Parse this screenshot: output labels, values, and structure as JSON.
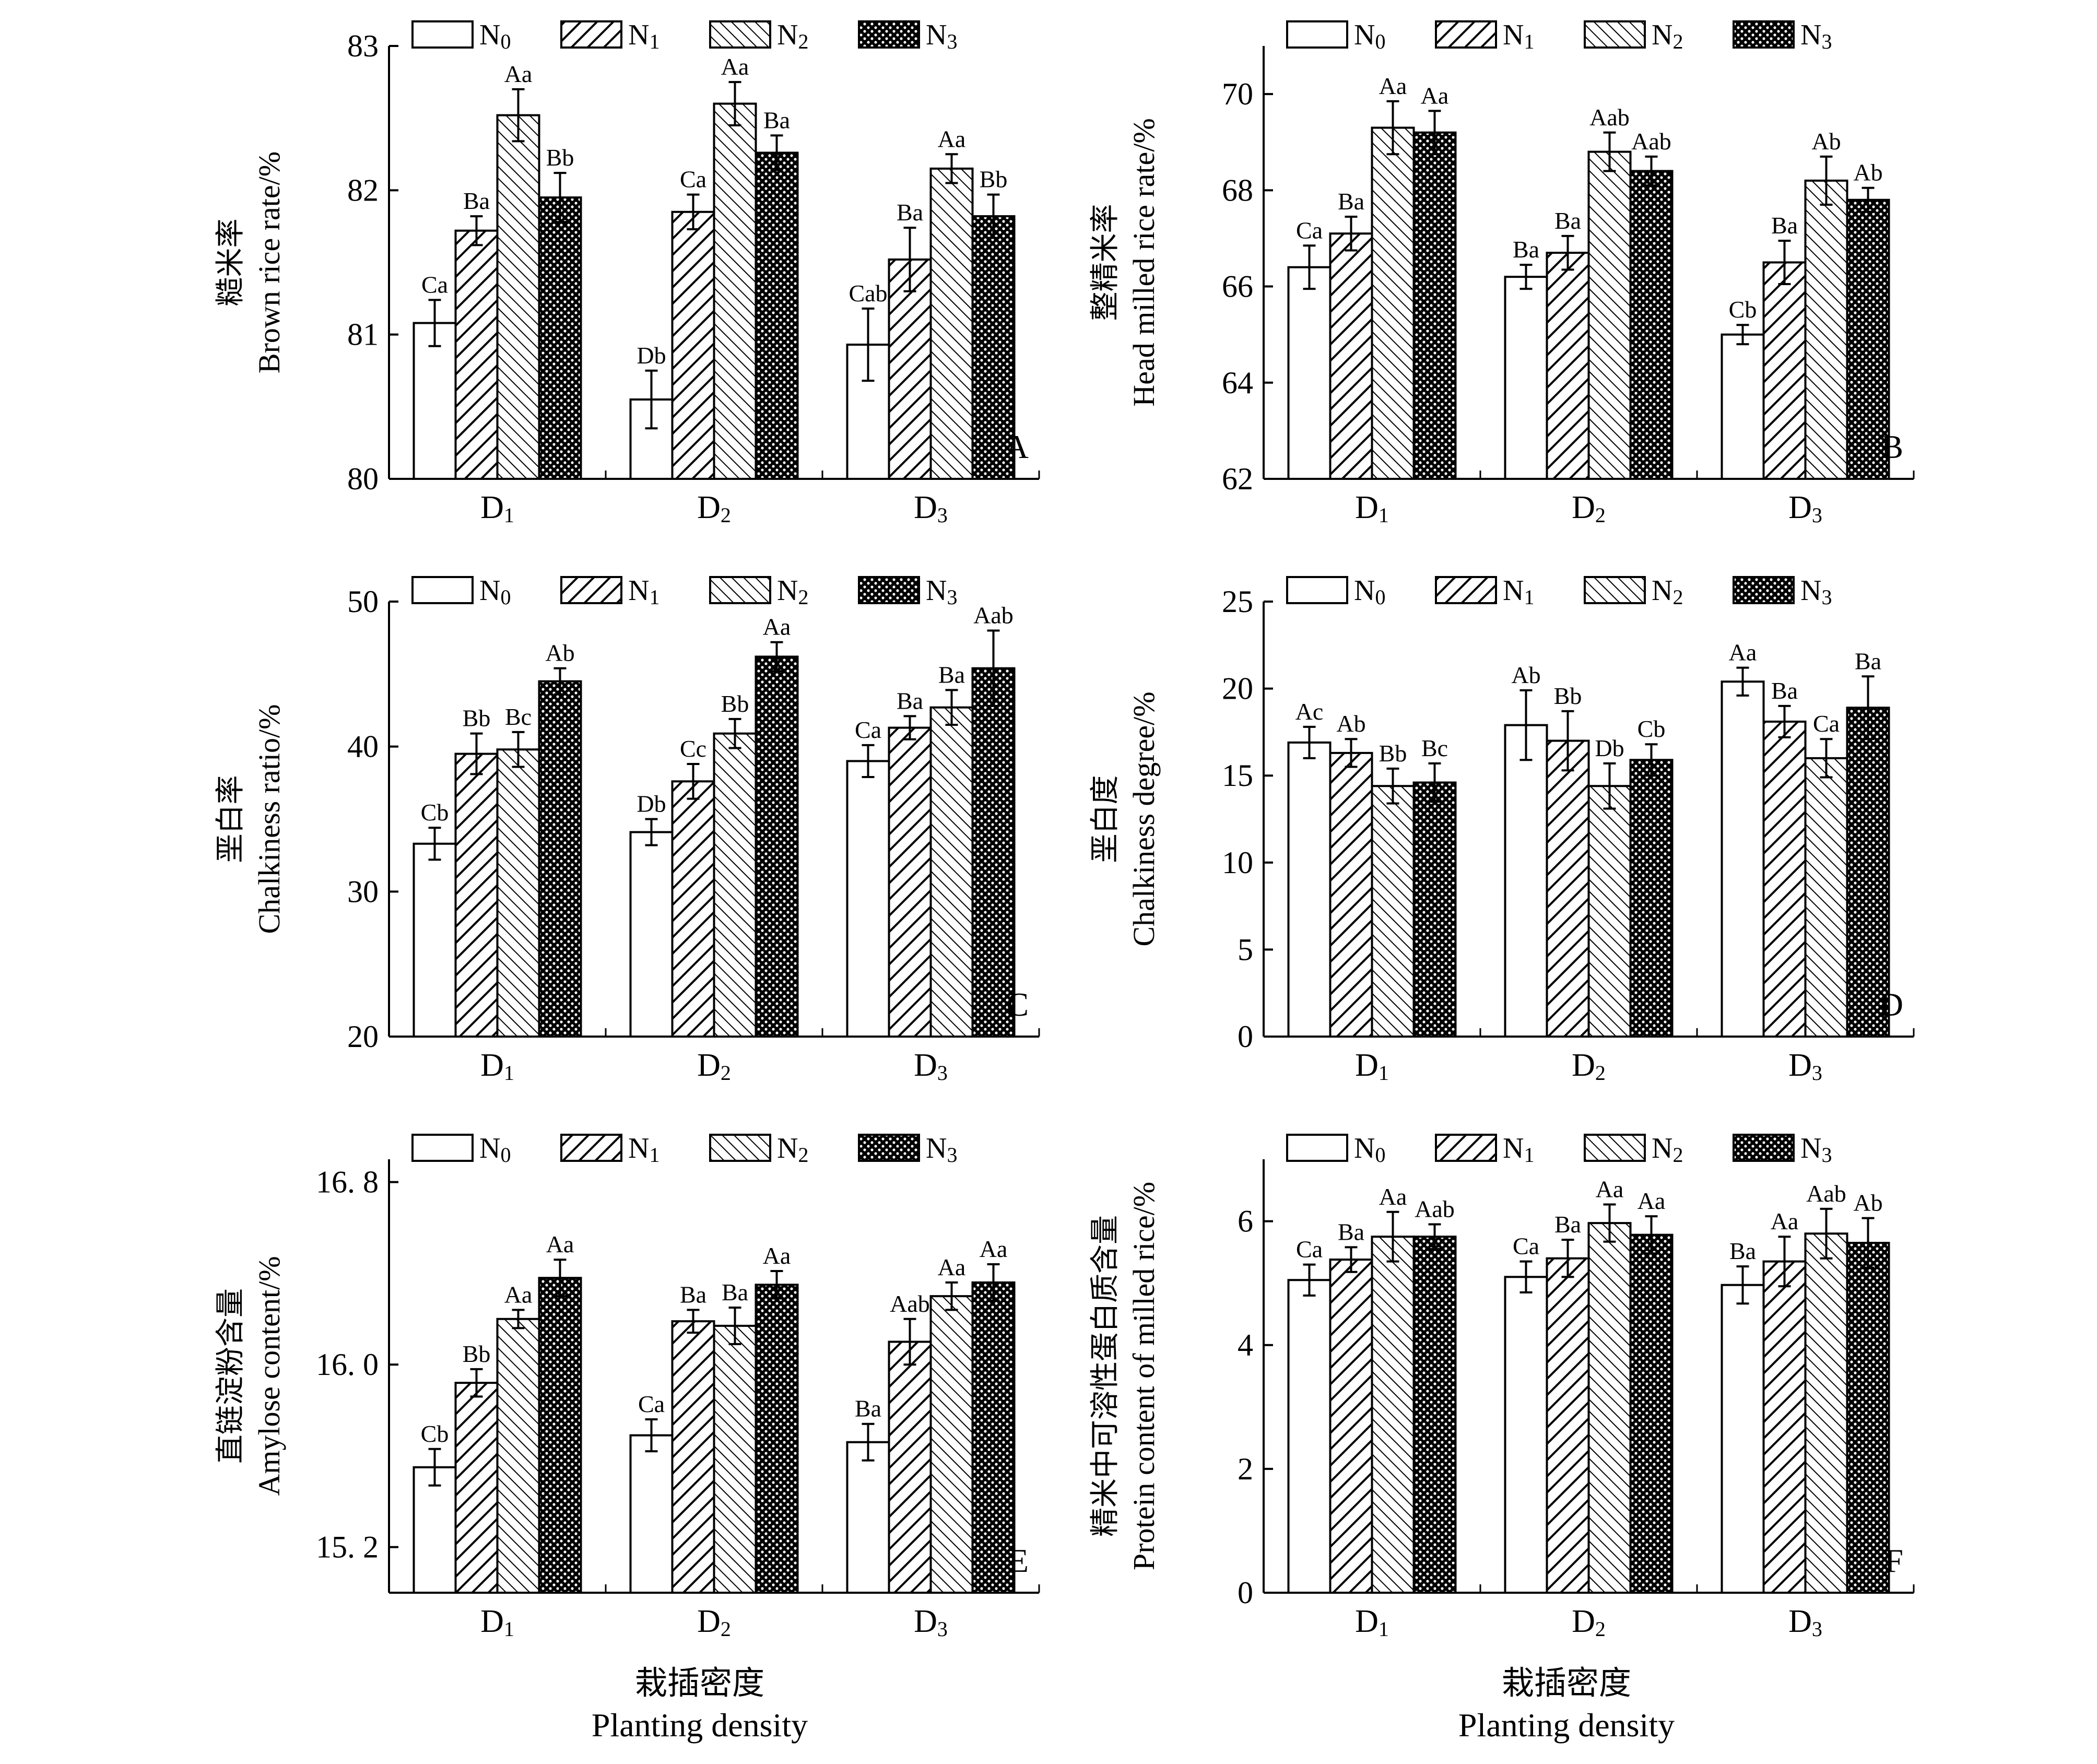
{
  "legend": [
    "N0",
    "N1",
    "N2",
    "N3"
  ],
  "categories": [
    "D1",
    "D2",
    "D3"
  ],
  "xlabel": {
    "cn": "栽插密度",
    "en": "Planting density"
  },
  "colors": {
    "bar_edge": "#000000",
    "n0_fill": "#ffffff",
    "pattern": "#000000"
  },
  "chart_data": [
    {
      "panel": "A",
      "type": "bar",
      "ylabel_cn": "糙米率",
      "ylabel_en": "Brown rice rate/%",
      "ylim": [
        80,
        83
      ],
      "yticks": [
        "80",
        "81",
        "82",
        "83"
      ],
      "ytick_values": [
        80,
        81,
        82,
        83
      ],
      "series": [
        {
          "name": "N0",
          "values": [
            81.08,
            80.55,
            80.93
          ],
          "errors": [
            0.16,
            0.2,
            0.25
          ],
          "labels": [
            "Ca",
            "Db",
            "Cab"
          ]
        },
        {
          "name": "N1",
          "values": [
            81.72,
            81.85,
            81.52
          ],
          "errors": [
            0.1,
            0.12,
            0.22
          ],
          "labels": [
            "Ba",
            "Ca",
            "Ba"
          ]
        },
        {
          "name": "N2",
          "values": [
            82.52,
            82.6,
            82.15
          ],
          "errors": [
            0.18,
            0.15,
            0.1
          ],
          "labels": [
            "Aa",
            "Aa",
            "Aa"
          ]
        },
        {
          "name": "N3",
          "values": [
            81.95,
            82.26,
            81.82
          ],
          "errors": [
            0.17,
            0.12,
            0.15
          ],
          "labels": [
            "Bb",
            "Ba",
            "Bb"
          ]
        }
      ]
    },
    {
      "panel": "B",
      "type": "bar",
      "ylabel_cn": "整精米率",
      "ylabel_en": "Head milled rice rate/%",
      "ylim": [
        62,
        71
      ],
      "yticks": [
        "62",
        "64",
        "66",
        "68",
        "70"
      ],
      "ytick_values": [
        62,
        64,
        66,
        68,
        70
      ],
      "series": [
        {
          "name": "N0",
          "values": [
            66.4,
            66.2,
            65.0
          ],
          "errors": [
            0.45,
            0.25,
            0.2
          ],
          "labels": [
            "Ca",
            "Ba",
            "Cb"
          ]
        },
        {
          "name": "N1",
          "values": [
            67.1,
            66.7,
            66.5
          ],
          "errors": [
            0.35,
            0.35,
            0.45
          ],
          "labels": [
            "Ba",
            "Ba",
            "Ba"
          ]
        },
        {
          "name": "N2",
          "values": [
            69.3,
            68.8,
            68.2
          ],
          "errors": [
            0.55,
            0.4,
            0.5
          ],
          "labels": [
            "Aa",
            "Aab",
            "Ab"
          ]
        },
        {
          "name": "N3",
          "values": [
            69.2,
            68.4,
            67.8
          ],
          "errors": [
            0.45,
            0.3,
            0.25
          ],
          "labels": [
            "Aa",
            "Aab",
            "Ab"
          ]
        }
      ]
    },
    {
      "panel": "C",
      "type": "bar",
      "ylabel_cn": "垩白率",
      "ylabel_en": "Chalkiness ratio/%",
      "ylim": [
        20,
        50
      ],
      "yticks": [
        "20",
        "30",
        "40",
        "50"
      ],
      "ytick_values": [
        20,
        30,
        40,
        50
      ],
      "series": [
        {
          "name": "N0",
          "values": [
            33.3,
            34.1,
            39.0
          ],
          "errors": [
            1.1,
            0.9,
            1.1
          ],
          "labels": [
            "Cb",
            "Db",
            "Ca"
          ]
        },
        {
          "name": "N1",
          "values": [
            39.5,
            37.6,
            41.3
          ],
          "errors": [
            1.4,
            1.2,
            0.8
          ],
          "labels": [
            "Bb",
            "Cc",
            "Ba"
          ]
        },
        {
          "name": "N2",
          "values": [
            39.8,
            40.9,
            42.7
          ],
          "errors": [
            1.2,
            1.0,
            1.2
          ],
          "labels": [
            "Bc",
            "Bb",
            "Ba"
          ]
        },
        {
          "name": "N3",
          "values": [
            44.5,
            46.2,
            45.4
          ],
          "errors": [
            0.9,
            1.0,
            2.6
          ],
          "labels": [
            "Ab",
            "Aa",
            "Aab"
          ]
        }
      ]
    },
    {
      "panel": "D",
      "type": "bar",
      "ylabel_cn": "垩白度",
      "ylabel_en": "Chalkiness degree/%",
      "ylim": [
        0,
        25
      ],
      "yticks": [
        "0",
        "5",
        "10",
        "15",
        "20",
        "25"
      ],
      "ytick_values": [
        0,
        5,
        10,
        15,
        20,
        25
      ],
      "series": [
        {
          "name": "N0",
          "values": [
            16.9,
            17.9,
            20.4
          ],
          "errors": [
            0.9,
            2.0,
            0.8
          ],
          "labels": [
            "Ac",
            "Ab",
            "Aa"
          ]
        },
        {
          "name": "N1",
          "values": [
            16.3,
            17.0,
            18.1
          ],
          "errors": [
            0.8,
            1.7,
            0.9
          ],
          "labels": [
            "Ab",
            "Bb",
            "Ba"
          ]
        },
        {
          "name": "N2",
          "values": [
            14.4,
            14.4,
            16.0
          ],
          "errors": [
            1.0,
            1.3,
            1.1
          ],
          "labels": [
            "Bb",
            "Db",
            "Ca"
          ]
        },
        {
          "name": "N3",
          "values": [
            14.6,
            15.9,
            18.9
          ],
          "errors": [
            1.1,
            0.9,
            1.8
          ],
          "labels": [
            "Bc",
            "Cb",
            "Ba"
          ]
        }
      ]
    },
    {
      "panel": "E",
      "type": "bar",
      "ylabel_cn": "直链淀粉含量",
      "ylabel_en": "Amylose content/%",
      "ylim": [
        15.0,
        16.9
      ],
      "yticks": [
        "15. 2",
        "16. 0",
        "16. 8"
      ],
      "ytick_values": [
        15.2,
        16.0,
        16.8
      ],
      "series": [
        {
          "name": "N0",
          "values": [
            15.55,
            15.69,
            15.66
          ],
          "errors": [
            0.08,
            0.07,
            0.08
          ],
          "labels": [
            "Cb",
            "Ca",
            "Ba"
          ]
        },
        {
          "name": "N1",
          "values": [
            15.92,
            16.19,
            16.1
          ],
          "errors": [
            0.06,
            0.05,
            0.1
          ],
          "labels": [
            "Bb",
            "Ba",
            "Aab"
          ]
        },
        {
          "name": "N2",
          "values": [
            16.2,
            16.17,
            16.3
          ],
          "errors": [
            0.04,
            0.08,
            0.06
          ],
          "labels": [
            "Aa",
            "Ba",
            "Aa"
          ]
        },
        {
          "name": "N3",
          "values": [
            16.38,
            16.35,
            16.36
          ],
          "errors": [
            0.08,
            0.06,
            0.08
          ],
          "labels": [
            "Aa",
            "Aa",
            "Aa"
          ]
        }
      ]
    },
    {
      "panel": "F",
      "type": "bar",
      "ylabel_cn": "精米中可溶性蛋白质含量",
      "ylabel_en": "Protein content of milled rice/%",
      "ylim": [
        0,
        7
      ],
      "yticks": [
        "0",
        "2",
        "4",
        "6"
      ],
      "ytick_values": [
        0,
        2,
        4,
        6
      ],
      "series": [
        {
          "name": "N0",
          "values": [
            5.05,
            5.1,
            4.97
          ],
          "errors": [
            0.25,
            0.25,
            0.3
          ],
          "labels": [
            "Ca",
            "Ca",
            "Ba"
          ]
        },
        {
          "name": "N1",
          "values": [
            5.38,
            5.4,
            5.35
          ],
          "errors": [
            0.2,
            0.3,
            0.4
          ],
          "labels": [
            "Ba",
            "Ba",
            "Aa"
          ]
        },
        {
          "name": "N2",
          "values": [
            5.75,
            5.97,
            5.8
          ],
          "errors": [
            0.4,
            0.3,
            0.4
          ],
          "labels": [
            "Aa",
            "Aa",
            "Aab"
          ]
        },
        {
          "name": "N3",
          "values": [
            5.75,
            5.78,
            5.65
          ],
          "errors": [
            0.2,
            0.3,
            0.4
          ],
          "labels": [
            "Aab",
            "Aa",
            "Ab"
          ]
        }
      ]
    }
  ]
}
